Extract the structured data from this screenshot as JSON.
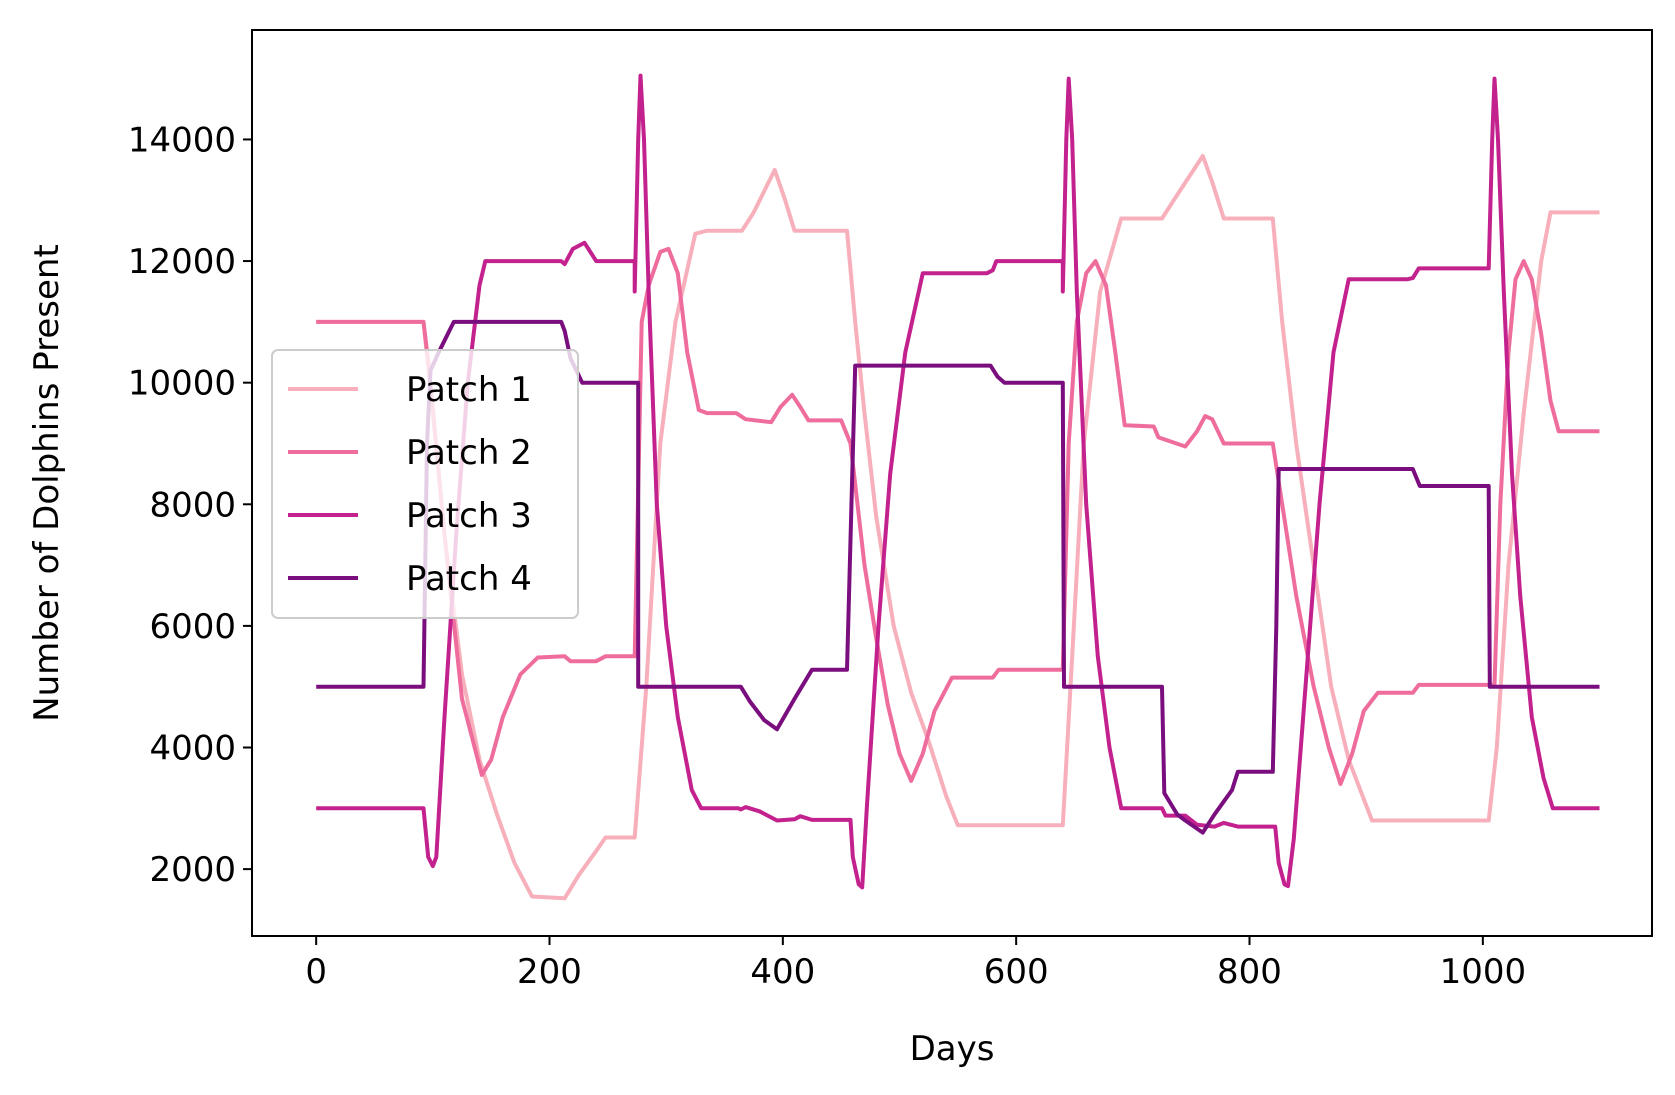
{
  "chart_data": {
    "type": "line",
    "title": "",
    "xlabel": "Days",
    "ylabel": "Number of Dolphins Present",
    "xlim": [
      -55,
      1145
    ],
    "ylim": [
      900,
      15800
    ],
    "xticks": [
      0,
      200,
      400,
      600,
      800,
      1000
    ],
    "yticks": [
      2000,
      4000,
      6000,
      8000,
      10000,
      12000,
      14000
    ],
    "grid": false,
    "legend_position": "center-left",
    "series": [
      {
        "name": "Patch 1",
        "color": "#f7b0bb",
        "points": [
          [
            0,
            11000
          ],
          [
            92,
            11000
          ],
          [
            100,
            9500
          ],
          [
            110,
            7500
          ],
          [
            125,
            5200
          ],
          [
            140,
            3800
          ],
          [
            155,
            2900
          ],
          [
            170,
            2100
          ],
          [
            185,
            1550
          ],
          [
            213,
            1520
          ],
          [
            225,
            1900
          ],
          [
            240,
            2300
          ],
          [
            248,
            2520
          ],
          [
            273,
            2520
          ],
          [
            283,
            5000
          ],
          [
            295,
            9000
          ],
          [
            308,
            11000
          ],
          [
            325,
            12450
          ],
          [
            335,
            12500
          ],
          [
            365,
            12500
          ],
          [
            375,
            12800
          ],
          [
            393,
            13500
          ],
          [
            402,
            13000
          ],
          [
            410,
            12500
          ],
          [
            455,
            12500
          ],
          [
            462,
            11000
          ],
          [
            470,
            9500
          ],
          [
            480,
            7800
          ],
          [
            495,
            6000
          ],
          [
            510,
            4900
          ],
          [
            525,
            4100
          ],
          [
            540,
            3200
          ],
          [
            550,
            2720
          ],
          [
            640,
            2720
          ],
          [
            648,
            5500
          ],
          [
            658,
            9000
          ],
          [
            672,
            11500
          ],
          [
            690,
            12700
          ],
          [
            725,
            12700
          ],
          [
            735,
            13000
          ],
          [
            760,
            13730
          ],
          [
            768,
            13300
          ],
          [
            778,
            12700
          ],
          [
            820,
            12700
          ],
          [
            828,
            11000
          ],
          [
            840,
            9000
          ],
          [
            855,
            7000
          ],
          [
            870,
            5000
          ],
          [
            885,
            3800
          ],
          [
            905,
            2800
          ],
          [
            1005,
            2800
          ],
          [
            1012,
            4000
          ],
          [
            1022,
            7000
          ],
          [
            1035,
            9500
          ],
          [
            1050,
            12000
          ],
          [
            1058,
            12800
          ],
          [
            1100,
            12800
          ]
        ]
      },
      {
        "name": "Patch 2",
        "color": "#ee6d9c",
        "points": [
          [
            0,
            11000
          ],
          [
            92,
            11000
          ],
          [
            97,
            10200
          ],
          [
            110,
            7500
          ],
          [
            125,
            4800
          ],
          [
            142,
            3550
          ],
          [
            150,
            3800
          ],
          [
            160,
            4500
          ],
          [
            175,
            5200
          ],
          [
            190,
            5480
          ],
          [
            213,
            5500
          ],
          [
            218,
            5420
          ],
          [
            240,
            5420
          ],
          [
            248,
            5500
          ],
          [
            273,
            5500
          ],
          [
            279,
            11000
          ],
          [
            285,
            11600
          ],
          [
            295,
            12150
          ],
          [
            302,
            12200
          ],
          [
            310,
            11800
          ],
          [
            318,
            10500
          ],
          [
            328,
            9550
          ],
          [
            335,
            9500
          ],
          [
            360,
            9500
          ],
          [
            368,
            9400
          ],
          [
            390,
            9350
          ],
          [
            398,
            9600
          ],
          [
            408,
            9800
          ],
          [
            415,
            9600
          ],
          [
            422,
            9380
          ],
          [
            450,
            9380
          ],
          [
            458,
            9000
          ],
          [
            470,
            7000
          ],
          [
            480,
            5800
          ],
          [
            490,
            4700
          ],
          [
            500,
            3900
          ],
          [
            510,
            3450
          ],
          [
            520,
            3900
          ],
          [
            530,
            4600
          ],
          [
            545,
            5150
          ],
          [
            580,
            5150
          ],
          [
            585,
            5280
          ],
          [
            640,
            5280
          ],
          [
            645,
            9000
          ],
          [
            652,
            11000
          ],
          [
            660,
            11800
          ],
          [
            668,
            12000
          ],
          [
            677,
            11600
          ],
          [
            685,
            10500
          ],
          [
            693,
            9300
          ],
          [
            718,
            9280
          ],
          [
            722,
            9100
          ],
          [
            745,
            8950
          ],
          [
            755,
            9200
          ],
          [
            762,
            9450
          ],
          [
            768,
            9400
          ],
          [
            778,
            9000
          ],
          [
            820,
            9000
          ],
          [
            828,
            8000
          ],
          [
            840,
            6500
          ],
          [
            855,
            5000
          ],
          [
            868,
            4000
          ],
          [
            878,
            3400
          ],
          [
            888,
            3900
          ],
          [
            898,
            4600
          ],
          [
            910,
            4900
          ],
          [
            940,
            4900
          ],
          [
            945,
            5030
          ],
          [
            1010,
            5030
          ],
          [
            1015,
            8000
          ],
          [
            1022,
            10500
          ],
          [
            1028,
            11700
          ],
          [
            1035,
            12000
          ],
          [
            1042,
            11700
          ],
          [
            1050,
            10800
          ],
          [
            1058,
            9700
          ],
          [
            1065,
            9200
          ],
          [
            1100,
            9200
          ]
        ]
      },
      {
        "name": "Patch 3",
        "color": "#c3228e",
        "points": [
          [
            0,
            3000
          ],
          [
            92,
            3000
          ],
          [
            96,
            2200
          ],
          [
            100,
            2050
          ],
          [
            103,
            2200
          ],
          [
            110,
            4500
          ],
          [
            120,
            7500
          ],
          [
            130,
            10000
          ],
          [
            140,
            11600
          ],
          [
            145,
            12000
          ],
          [
            210,
            12000
          ],
          [
            213,
            11950
          ],
          [
            220,
            12200
          ],
          [
            230,
            12300
          ],
          [
            240,
            12000
          ],
          [
            273,
            12000
          ],
          [
            273,
            11500
          ],
          [
            276,
            14000
          ],
          [
            278,
            15050
          ],
          [
            281,
            14000
          ],
          [
            285,
            11500
          ],
          [
            292,
            8000
          ],
          [
            300,
            6000
          ],
          [
            310,
            4500
          ],
          [
            322,
            3300
          ],
          [
            330,
            3000
          ],
          [
            362,
            3000
          ],
          [
            364,
            2980
          ],
          [
            368,
            3020
          ],
          [
            380,
            2950
          ],
          [
            395,
            2800
          ],
          [
            410,
            2820
          ],
          [
            415,
            2870
          ],
          [
            425,
            2810
          ],
          [
            458,
            2810
          ],
          [
            460,
            2200
          ],
          [
            465,
            1750
          ],
          [
            468,
            1700
          ],
          [
            472,
            3000
          ],
          [
            482,
            6000
          ],
          [
            492,
            8500
          ],
          [
            505,
            10500
          ],
          [
            520,
            11800
          ],
          [
            575,
            11800
          ],
          [
            580,
            11850
          ],
          [
            583,
            12000
          ],
          [
            640,
            12000
          ],
          [
            640,
            11500
          ],
          [
            643,
            14000
          ],
          [
            645,
            15000
          ],
          [
            648,
            14000
          ],
          [
            652,
            11500
          ],
          [
            660,
            8000
          ],
          [
            670,
            5500
          ],
          [
            680,
            4000
          ],
          [
            690,
            3000
          ],
          [
            725,
            3000
          ],
          [
            728,
            2880
          ],
          [
            745,
            2880
          ],
          [
            755,
            2730
          ],
          [
            770,
            2700
          ],
          [
            778,
            2760
          ],
          [
            790,
            2700
          ],
          [
            822,
            2700
          ],
          [
            825,
            2100
          ],
          [
            830,
            1750
          ],
          [
            833,
            1720
          ],
          [
            838,
            2500
          ],
          [
            848,
            5000
          ],
          [
            860,
            8000
          ],
          [
            872,
            10500
          ],
          [
            885,
            11700
          ],
          [
            935,
            11700
          ],
          [
            940,
            11720
          ],
          [
            945,
            11880
          ],
          [
            1005,
            11880
          ],
          [
            1008,
            14000
          ],
          [
            1010,
            15000
          ],
          [
            1013,
            14000
          ],
          [
            1018,
            11500
          ],
          [
            1025,
            8500
          ],
          [
            1032,
            6500
          ],
          [
            1042,
            4500
          ],
          [
            1052,
            3500
          ],
          [
            1060,
            3000
          ],
          [
            1100,
            3000
          ]
        ]
      },
      {
        "name": "Patch 4",
        "color": "#7a0e7e",
        "points": [
          [
            0,
            5000
          ],
          [
            92,
            5000
          ],
          [
            95,
            9000
          ],
          [
            98,
            10200
          ],
          [
            105,
            10500
          ],
          [
            118,
            11000
          ],
          [
            210,
            11000
          ],
          [
            213,
            10850
          ],
          [
            218,
            10400
          ],
          [
            228,
            10000
          ],
          [
            273,
            10000
          ],
          [
            276,
            10000
          ],
          [
            276,
            5000
          ],
          [
            364,
            5000
          ],
          [
            372,
            4750
          ],
          [
            384,
            4450
          ],
          [
            395,
            4300
          ],
          [
            410,
            4800
          ],
          [
            425,
            5280
          ],
          [
            455,
            5280
          ],
          [
            462,
            10280
          ],
          [
            578,
            10280
          ],
          [
            584,
            10100
          ],
          [
            590,
            10000
          ],
          [
            640,
            10000
          ],
          [
            641,
            5000
          ],
          [
            725,
            5000
          ],
          [
            727,
            3250
          ],
          [
            738,
            2900
          ],
          [
            745,
            2800
          ],
          [
            760,
            2600
          ],
          [
            770,
            2900
          ],
          [
            785,
            3300
          ],
          [
            790,
            3600
          ],
          [
            820,
            3600
          ],
          [
            823,
            6000
          ],
          [
            825,
            8580
          ],
          [
            940,
            8580
          ],
          [
            946,
            8300
          ],
          [
            1005,
            8300
          ],
          [
            1006,
            5000
          ],
          [
            1100,
            5000
          ]
        ]
      }
    ]
  }
}
